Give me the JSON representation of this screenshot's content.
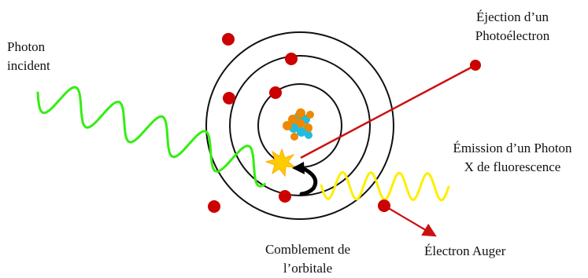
{
  "labels": {
    "photon_incident_line1": "Photon",
    "photon_incident_line2": "incident",
    "ejection_line1": "Éjection d’un",
    "ejection_line2": "Photoélectron",
    "emission_line1": "Émission d’un Photon",
    "emission_line2": "X de fluorescence",
    "comblement_line1": "Comblement de",
    "comblement_line2": "l’orbitale",
    "auger": "Électron Auger"
  },
  "colors": {
    "incident_wave": "#33ee11",
    "fluorescence_wave": "#ffee00",
    "electron": "#cc0000",
    "photoelectron_track": "#cc1111",
    "auger_track": "#cc1111",
    "orbit": "#111111",
    "impact_flash": "#ffcc00",
    "transition_arrow": "#000000",
    "nucleus_proton": "#ee8800",
    "nucleus_neutron": "#22bbdd"
  }
}
